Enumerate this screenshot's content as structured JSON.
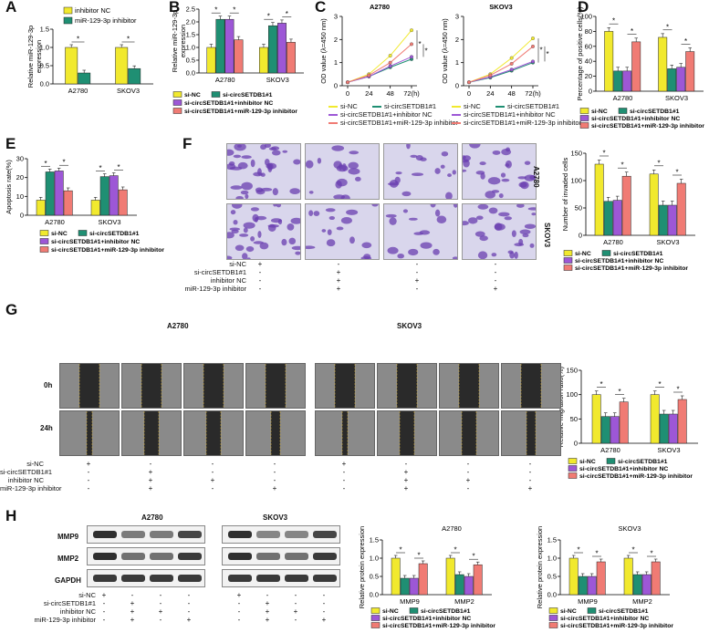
{
  "colors": {
    "c1": "#f1e92e",
    "c2": "#1f8f73",
    "c3": "#9d57d6",
    "c4": "#f07b74",
    "inh_nc": "#f1e92e",
    "inh": "#1f8f73"
  },
  "panels": {
    "A": {
      "label": "A",
      "ylabel": "Relative miR-129-3p\nexpression",
      "yticks": [
        "0.0",
        "0.5",
        "1.0",
        "1.5"
      ],
      "categories": [
        "A2780",
        "SKOV3"
      ],
      "legend": [
        "inhibitor NC",
        "miR-129-3p inhibitor"
      ]
    },
    "B": {
      "label": "B",
      "ylabel": "Relative miR-129-3p\nexpression",
      "yticks": [
        "0.0",
        "0.5",
        "1.0",
        "1.5",
        "2.0",
        "2.5"
      ],
      "categories": [
        "A2780",
        "SKOV3"
      ]
    },
    "C": {
      "label": "C",
      "left_title": "A2780",
      "right_title": "SKOV3",
      "ylabel": "OD value (λ=450 nm)",
      "yticks": [
        "0",
        "1",
        "2",
        "3"
      ],
      "xticks": [
        "0",
        "24",
        "48",
        "72(h)"
      ],
      "legend": [
        "si-NC",
        "si-circSETDB1#1",
        "si-circSETDB1#1+inhibitor NC",
        "si-circSETDB1#1+miR-129-3p inhibitor"
      ]
    },
    "D": {
      "label": "D",
      "ylabel": "Percentage of positive cells(%)",
      "yticks": [
        "0",
        "20",
        "40",
        "60",
        "80",
        "100"
      ],
      "categories": [
        "A2780",
        "SKOV3"
      ]
    },
    "E": {
      "label": "E",
      "ylabel": "Apoptosis rate(%)",
      "yticks": [
        "0",
        "10",
        "20",
        "30"
      ],
      "categories": [
        "A2780",
        "SKOV3"
      ]
    },
    "F": {
      "label": "F",
      "ylabel": "Number of invaded cells",
      "yticks": [
        "0",
        "50",
        "100",
        "150"
      ],
      "categories": [
        "A2780",
        "SKOV3"
      ],
      "row_labels": [
        "A2780",
        "SKOV3"
      ]
    },
    "G": {
      "label": "G",
      "left_title": "A2780",
      "right_title": "SKOV3",
      "row_labels": [
        "0h",
        "24h"
      ],
      "ylabel": "Relative migration ratio(%)",
      "yticks": [
        "0",
        "50",
        "100",
        "150"
      ],
      "categories": [
        "A2780",
        "SKOV3"
      ]
    },
    "H": {
      "label": "H",
      "left_title": "A2780",
      "right_title": "SKOV3",
      "row_labels": [
        "MMP9",
        "MMP2",
        "GAPDH"
      ],
      "chart_left_title": "A2780",
      "chart_right_title": "SKOV3",
      "ylabel": "Relative protein expression",
      "yticks": [
        "0.0",
        "0.5",
        "1.0",
        "1.5"
      ],
      "categories": [
        "MMP9",
        "MMP2"
      ]
    }
  },
  "legend4": [
    "si-NC",
    "si-circSETDB1#1",
    "si-circSETDB1#1+inhibitor NC",
    "si-circSETDB1#1+miR-129-3p inhibitor"
  ],
  "condition_table": {
    "rows": [
      "si-NC",
      "si-circSETDB1#1",
      "inhibitor NC",
      "miR-129-3p inhibitor"
    ],
    "cols": [
      [
        "+",
        "-",
        "-",
        "-"
      ],
      [
        "-",
        "+",
        "+",
        "+"
      ],
      [
        "-",
        "-",
        "+",
        "-"
      ],
      [
        "-",
        "-",
        "-",
        "+"
      ]
    ]
  },
  "sig_mark": "*",
  "chart_data": [
    {
      "panel": "A",
      "type": "bar",
      "categories": [
        "A2780",
        "SKOV3"
      ],
      "series": [
        {
          "name": "inhibitor NC",
          "values": [
            1.0,
            1.0
          ]
        },
        {
          "name": "miR-129-3p inhibitor",
          "values": [
            0.3,
            0.42
          ]
        }
      ],
      "ylim": [
        0,
        1.5
      ]
    },
    {
      "panel": "B",
      "type": "bar",
      "categories": [
        "A2780",
        "SKOV3"
      ],
      "series": [
        {
          "name": "si-NC",
          "values": [
            1.0,
            1.0
          ]
        },
        {
          "name": "si-circSETDB1#1",
          "values": [
            2.1,
            1.85
          ]
        },
        {
          "name": "si-circSETDB1#1+inhibitor NC",
          "values": [
            2.1,
            1.95
          ]
        },
        {
          "name": "si-circSETDB1#1+miR-129-3p inhibitor",
          "values": [
            1.3,
            1.2
          ]
        }
      ],
      "ylim": [
        0,
        2.5
      ]
    },
    {
      "panel": "C-A2780",
      "type": "line",
      "x": [
        0,
        24,
        48,
        72
      ],
      "series": [
        {
          "name": "si-NC",
          "values": [
            0.15,
            0.5,
            1.3,
            2.4
          ]
        },
        {
          "name": "si-circSETDB1#1",
          "values": [
            0.15,
            0.4,
            0.8,
            1.15
          ]
        },
        {
          "name": "si-circSETDB1#1+inhibitor NC",
          "values": [
            0.15,
            0.4,
            0.85,
            1.25
          ]
        },
        {
          "name": "si-circSETDB1#1+miR-129-3p inhibitor",
          "values": [
            0.15,
            0.45,
            1.0,
            1.8
          ]
        }
      ],
      "ylim": [
        0,
        3
      ]
    },
    {
      "panel": "C-SKOV3",
      "type": "line",
      "x": [
        0,
        24,
        48,
        72
      ],
      "series": [
        {
          "name": "si-NC",
          "values": [
            0.15,
            0.5,
            1.2,
            2.05
          ]
        },
        {
          "name": "si-circSETDB1#1",
          "values": [
            0.15,
            0.35,
            0.65,
            1.0
          ]
        },
        {
          "name": "si-circSETDB1#1+inhibitor NC",
          "values": [
            0.15,
            0.38,
            0.7,
            1.05
          ]
        },
        {
          "name": "si-circSETDB1#1+miR-129-3p inhibitor",
          "values": [
            0.15,
            0.45,
            0.95,
            1.7
          ]
        }
      ],
      "ylim": [
        0,
        3
      ]
    },
    {
      "panel": "D",
      "type": "bar",
      "categories": [
        "A2780",
        "SKOV3"
      ],
      "series": [
        {
          "name": "si-NC",
          "values": [
            80,
            72
          ]
        },
        {
          "name": "si-circSETDB1#1",
          "values": [
            27,
            30
          ]
        },
        {
          "name": "si-circSETDB1#1+inhibitor NC",
          "values": [
            27,
            32
          ]
        },
        {
          "name": "si-circSETDB1#1+miR-129-3p inhibitor",
          "values": [
            66,
            53
          ]
        }
      ],
      "ylim": [
        0,
        100
      ]
    },
    {
      "panel": "E",
      "type": "bar",
      "categories": [
        "A2780",
        "SKOV3"
      ],
      "series": [
        {
          "name": "si-NC",
          "values": [
            8,
            8
          ]
        },
        {
          "name": "si-circSETDB1#1",
          "values": [
            23,
            20.5
          ]
        },
        {
          "name": "si-circSETDB1#1+inhibitor NC",
          "values": [
            23.5,
            21
          ]
        },
        {
          "name": "si-circSETDB1#1+miR-129-3p inhibitor",
          "values": [
            13,
            13.5
          ]
        }
      ],
      "ylim": [
        0,
        30
      ]
    },
    {
      "panel": "F",
      "type": "bar",
      "categories": [
        "A2780",
        "SKOV3"
      ],
      "series": [
        {
          "name": "si-NC",
          "values": [
            130,
            112
          ]
        },
        {
          "name": "si-circSETDB1#1",
          "values": [
            62,
            55
          ]
        },
        {
          "name": "si-circSETDB1#1+inhibitor NC",
          "values": [
            64,
            55
          ]
        },
        {
          "name": "si-circSETDB1#1+miR-129-3p inhibitor",
          "values": [
            108,
            95
          ]
        }
      ],
      "ylim": [
        0,
        150
      ]
    },
    {
      "panel": "G",
      "type": "bar",
      "categories": [
        "A2780",
        "SKOV3"
      ],
      "series": [
        {
          "name": "si-NC",
          "values": [
            100,
            100
          ]
        },
        {
          "name": "si-circSETDB1#1",
          "values": [
            55,
            60
          ]
        },
        {
          "name": "si-circSETDB1#1+inhibitor NC",
          "values": [
            55,
            60
          ]
        },
        {
          "name": "si-circSETDB1#1+miR-129-3p inhibitor",
          "values": [
            85,
            90
          ]
        }
      ],
      "ylim": [
        0,
        150
      ]
    },
    {
      "panel": "H-A2780",
      "type": "bar",
      "categories": [
        "MMP9",
        "MMP2"
      ],
      "series": [
        {
          "name": "si-NC",
          "values": [
            1.0,
            1.0
          ]
        },
        {
          "name": "si-circSETDB1#1",
          "values": [
            0.45,
            0.55
          ]
        },
        {
          "name": "si-circSETDB1#1+inhibitor NC",
          "values": [
            0.45,
            0.5
          ]
        },
        {
          "name": "si-circSETDB1#1+miR-129-3p inhibitor",
          "values": [
            0.85,
            0.82
          ]
        }
      ],
      "ylim": [
        0,
        1.5
      ]
    },
    {
      "panel": "H-SKOV3",
      "type": "bar",
      "categories": [
        "MMP9",
        "MMP2"
      ],
      "series": [
        {
          "name": "si-NC",
          "values": [
            1.0,
            1.0
          ]
        },
        {
          "name": "si-circSETDB1#1",
          "values": [
            0.5,
            0.55
          ]
        },
        {
          "name": "si-circSETDB1#1+inhibitor NC",
          "values": [
            0.5,
            0.55
          ]
        },
        {
          "name": "si-circSETDB1#1+miR-129-3p inhibitor",
          "values": [
            0.9,
            0.9
          ]
        }
      ],
      "ylim": [
        0,
        1.5
      ]
    }
  ]
}
